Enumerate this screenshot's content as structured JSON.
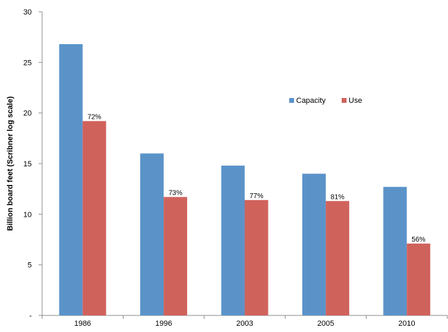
{
  "chart_data": {
    "type": "bar",
    "title": "",
    "xlabel": "",
    "ylabel": "Billion board feet (Scribner log scale)",
    "categories": [
      "1986",
      "1996",
      "2003",
      "2005",
      "2010"
    ],
    "series": [
      {
        "name": "Capacity",
        "color": "#5b93c9",
        "values": [
          26.8,
          16.0,
          14.8,
          14.0,
          12.7
        ]
      },
      {
        "name": "Use",
        "color": "#d0625c",
        "values": [
          19.2,
          11.7,
          11.4,
          11.3,
          7.1
        ],
        "data_labels": [
          "72%",
          "73%",
          "77%",
          "81%",
          "56%"
        ]
      }
    ],
    "ylim": [
      0,
      30
    ],
    "yticks": [
      0,
      5,
      10,
      15,
      20,
      25,
      30
    ],
    "ytick_labels": [
      "-",
      "5",
      "10",
      "15",
      "20",
      "25",
      "30"
    ],
    "grid": false,
    "legend_position": "right-center"
  }
}
